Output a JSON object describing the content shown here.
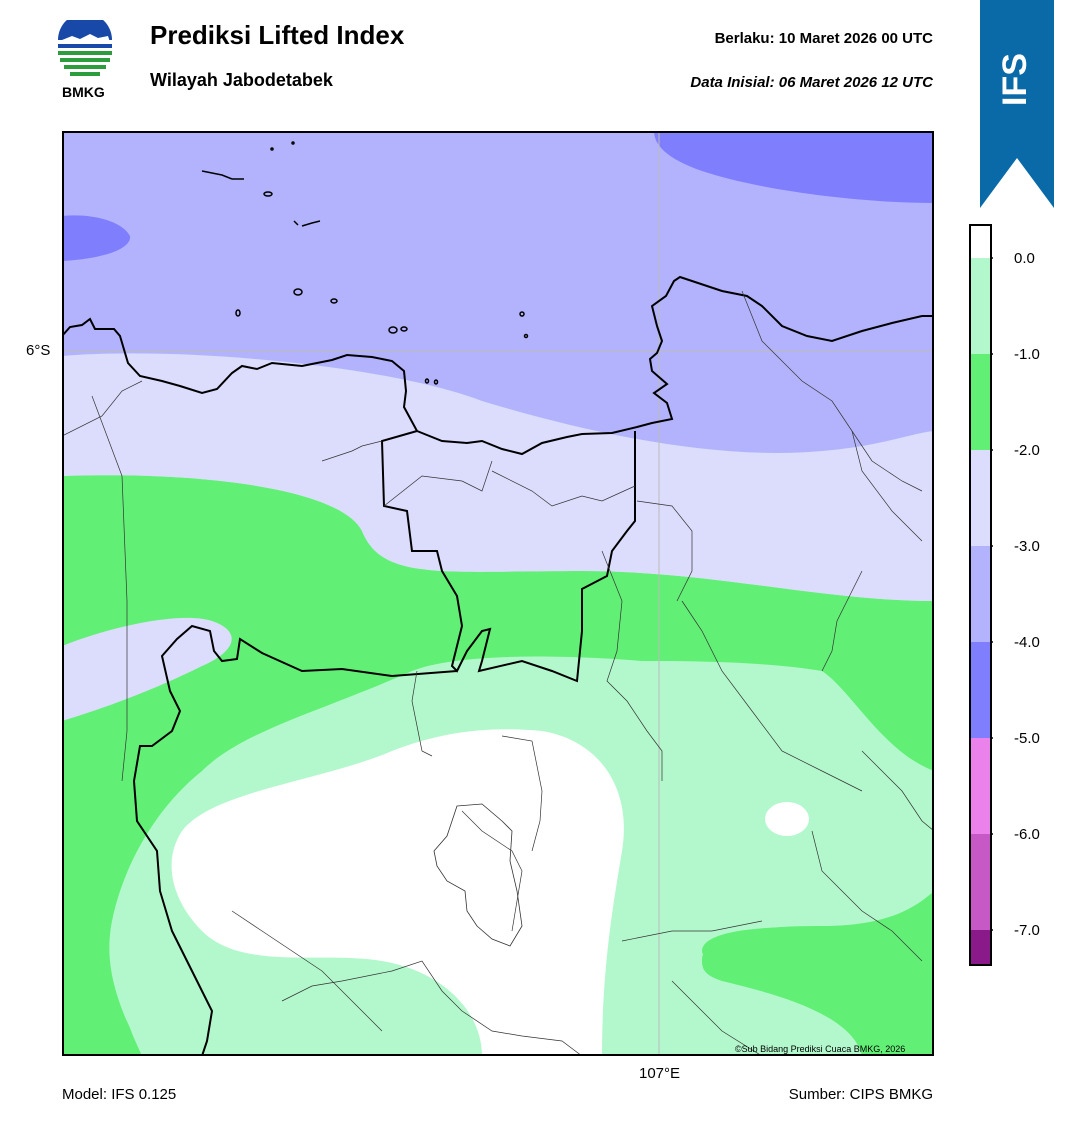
{
  "header": {
    "title": "Prediksi Lifted Index",
    "subtitle": "Wilayah Jabodetabek",
    "valid_label": "Berlaku:  10 Maret 2026 00 UTC",
    "init_label": "Data Inisial:  06 Maret 2026 12 UTC"
  },
  "logo": {
    "text": "BMKG",
    "icon": "bmkg-logo-icon"
  },
  "ribbon": {
    "text": "IFS",
    "color": "#0066aa"
  },
  "map": {
    "lat_label": "6°S",
    "lon_label": "107°E",
    "credit": "©Sub Bidang Prediksi Cuaca BMKG, 2026"
  },
  "colorbar": {
    "labels": [
      "0.0",
      "-1.0",
      "-2.0",
      "-3.0",
      "-4.0",
      "-5.0",
      "-6.0",
      "-7.0"
    ],
    "colors": [
      "#ffffff",
      "#b3f8cc",
      "#62ef75",
      "#dcdcfd",
      "#b3b3fd",
      "#7f7ffd",
      "#eb82eb",
      "#c759c7",
      "#a43ba4",
      "#8a1a8a"
    ]
  },
  "footer": {
    "model": "Model: IFS 0.125",
    "source": "Sumber: CIPS BMKG"
  }
}
